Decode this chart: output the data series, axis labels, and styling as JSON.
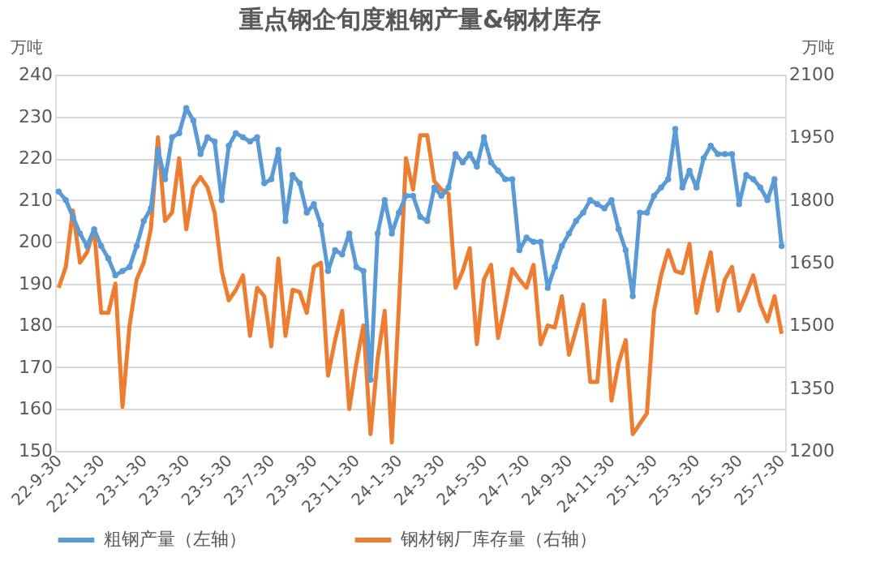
{
  "chart_data": {
    "type": "line",
    "title": "重点钢企旬度粗钢产量&钢材库存",
    "ylabel": "万吨",
    "y2label": "万吨",
    "categories": [
      "22-9-30",
      null,
      null,
      null,
      null,
      null,
      "22-11-30",
      null,
      null,
      null,
      null,
      null,
      "23-1-30",
      null,
      null,
      null,
      null,
      null,
      "23-3-30",
      null,
      null,
      null,
      null,
      null,
      "23-5-30",
      null,
      null,
      null,
      null,
      null,
      "23-7-30",
      null,
      null,
      null,
      null,
      null,
      "23-9-30",
      null,
      null,
      null,
      null,
      null,
      "23-11-30",
      null,
      null,
      null,
      null,
      null,
      "24-1-30",
      null,
      null,
      null,
      null,
      null,
      "24-3-30",
      null,
      null,
      null,
      null,
      null,
      "24-5-30",
      null,
      null,
      null,
      null,
      null,
      "24-7-30",
      null,
      null,
      null,
      null,
      null,
      "24-9-30",
      null,
      null,
      null,
      null,
      null,
      "24-11-30",
      null,
      null,
      null,
      null,
      null,
      "25-1-30",
      null,
      null,
      null,
      null,
      null,
      "25-3-30",
      null,
      null,
      null,
      null,
      null,
      "25-5-30",
      null,
      null,
      null,
      null,
      null,
      "25-7-30"
    ],
    "series": [
      {
        "name": "粗钢产量（左轴）",
        "color": "#5b9bd5",
        "marker": "circle",
        "values": [
          212,
          210,
          206,
          202,
          199,
          203,
          199,
          196,
          192,
          193,
          194,
          199,
          205,
          208,
          222,
          215,
          225,
          226,
          232,
          229,
          221,
          225,
          224,
          210,
          223,
          226,
          225,
          224,
          225,
          214,
          215,
          222,
          205,
          216,
          214,
          207,
          209,
          204,
          193,
          198,
          197,
          202,
          194,
          193,
          167,
          202,
          210,
          202,
          207,
          211,
          211,
          206,
          205,
          213,
          211,
          213,
          221,
          219,
          221,
          218,
          225,
          219,
          217,
          215,
          215,
          198,
          201,
          200,
          200,
          189,
          194,
          199,
          202,
          205,
          207,
          210,
          209,
          208,
          210,
          203,
          198,
          187,
          207,
          207,
          211,
          213,
          215,
          227,
          213,
          217,
          213,
          220,
          223,
          221,
          221,
          221,
          209,
          216,
          215,
          213,
          210,
          215,
          199
        ]
      },
      {
        "name": "钢材钢厂库存量（右轴）",
        "color": "#ed7d31",
        "marker": "none",
        "axis": "y2",
        "values": [
          1590,
          1640,
          1775,
          1650,
          1675,
          1730,
          1530,
          1530,
          1600,
          1305,
          1500,
          1610,
          1650,
          1730,
          1950,
          1750,
          1770,
          1900,
          1730,
          1830,
          1855,
          1830,
          1770,
          1630,
          1560,
          1585,
          1620,
          1475,
          1590,
          1570,
          1450,
          1660,
          1475,
          1585,
          1580,
          1530,
          1640,
          1650,
          1380,
          1465,
          1535,
          1300,
          1410,
          1500,
          1240,
          1420,
          1535,
          1220,
          1545,
          1900,
          1825,
          1955,
          1955,
          1845,
          1825,
          1815,
          1590,
          1630,
          1685,
          1455,
          1610,
          1645,
          1470,
          1550,
          1635,
          1610,
          1590,
          1645,
          1455,
          1500,
          1495,
          1570,
          1430,
          1490,
          1550,
          1365,
          1365,
          1560,
          1320,
          1410,
          1465,
          1240,
          1265,
          1290,
          1535,
          1620,
          1680,
          1630,
          1625,
          1695,
          1530,
          1610,
          1675,
          1535,
          1610,
          1640,
          1535,
          1575,
          1620,
          1550,
          1510,
          1570,
          1480
        ]
      }
    ],
    "ylim": [
      150,
      240
    ],
    "yticks": [
      150,
      160,
      170,
      180,
      190,
      200,
      210,
      220,
      230,
      240
    ],
    "y2lim": [
      1200,
      2100
    ],
    "y2ticks": [
      1200,
      1350,
      1500,
      1650,
      1800,
      1950,
      2100
    ],
    "grid": "y",
    "legend": "bottom",
    "line_style": "solid"
  }
}
